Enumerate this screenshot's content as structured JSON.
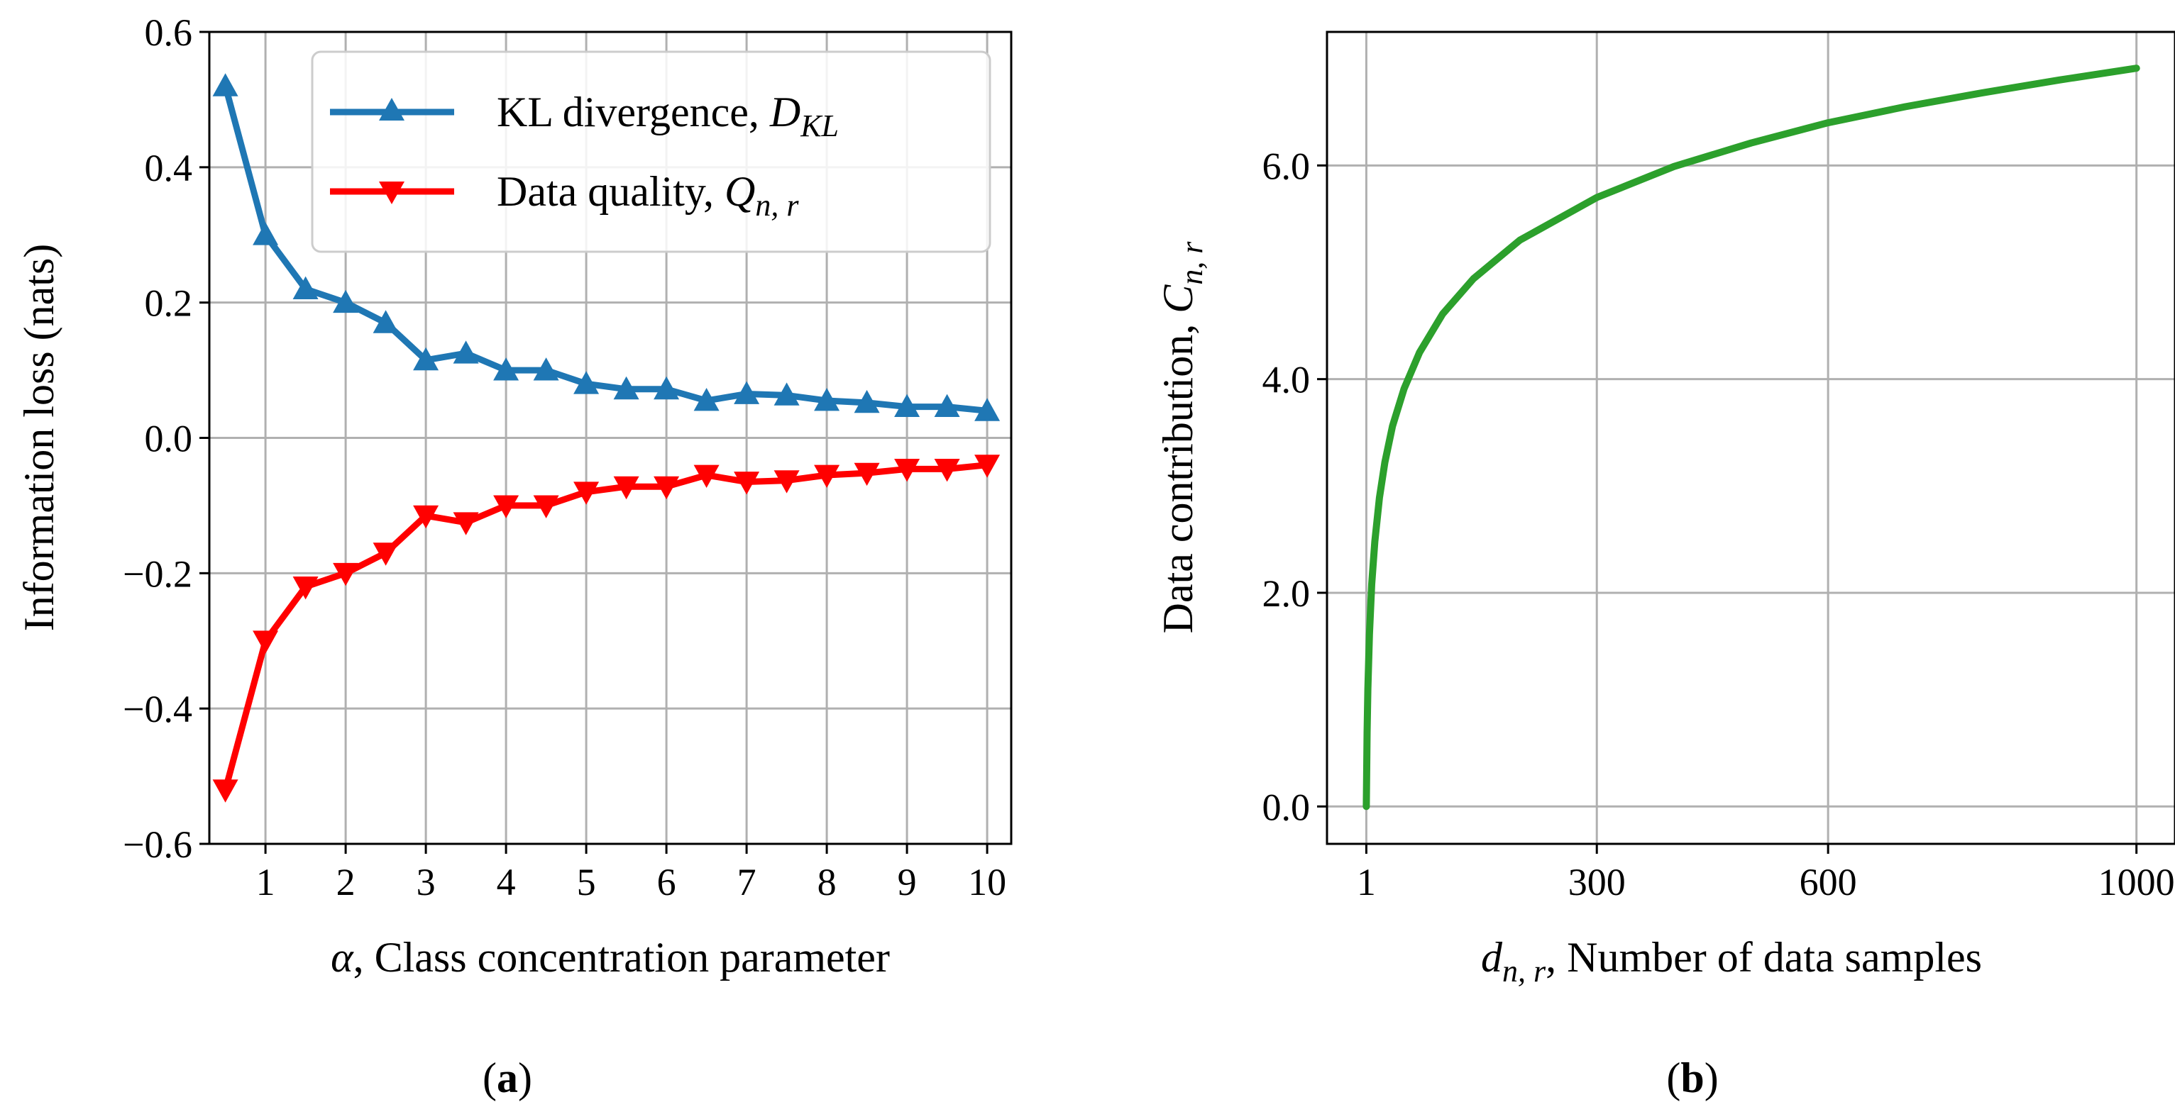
{
  "chart_data": [
    {
      "type": "line",
      "caption_letter": "a",
      "xlabel": ", Class concentration parameter",
      "xlabel_symbol": "α",
      "ylabel": "Information loss (nats)",
      "xlim": [
        0.3,
        10.3
      ],
      "ylim": [
        -0.6,
        0.6
      ],
      "xticks": [
        "1",
        "2",
        "3",
        "4",
        "5",
        "6",
        "7",
        "8",
        "9",
        "10"
      ],
      "yticks": [
        "0.6",
        "0.4",
        "0.2",
        "0.0",
        "−0.2",
        "−0.4",
        "−0.6"
      ],
      "grid": true,
      "legend_position": "top-right",
      "x": [
        0.5,
        1.0,
        1.5,
        2.0,
        2.5,
        3.0,
        3.5,
        4.0,
        4.5,
        5.0,
        5.5,
        6.0,
        6.5,
        7.0,
        7.5,
        8.0,
        8.5,
        9.0,
        9.5,
        10.0
      ],
      "series": [
        {
          "name": "KL divergence, ",
          "name_symbol": "D",
          "name_sub": "KL",
          "color": "#1f77b4",
          "marker": "triangle-up",
          "values": [
            0.52,
            0.3,
            0.22,
            0.2,
            0.17,
            0.115,
            0.125,
            0.1,
            0.1,
            0.08,
            0.072,
            0.072,
            0.055,
            0.065,
            0.063,
            0.055,
            0.052,
            0.046,
            0.046,
            0.04
          ]
        },
        {
          "name": "Data quality, ",
          "name_symbol": "Q",
          "name_sub": "n, r",
          "color": "#ff0000",
          "marker": "triangle-down",
          "values": [
            -0.52,
            -0.3,
            -0.22,
            -0.2,
            -0.17,
            -0.115,
            -0.125,
            -0.1,
            -0.1,
            -0.08,
            -0.072,
            -0.072,
            -0.055,
            -0.065,
            -0.063,
            -0.055,
            -0.052,
            -0.046,
            -0.046,
            -0.04
          ]
        }
      ]
    },
    {
      "type": "line",
      "caption_letter": "b",
      "xlabel": ", Number of data samples",
      "xlabel_symbol": "d",
      "xlabel_sub": "n, r",
      "ylabel": "Data contribution, ",
      "ylabel_symbol": "C",
      "ylabel_sub": "n, r",
      "xlim": [
        -50,
        1050
      ],
      "ylim": [
        -0.35,
        7.25
      ],
      "xticks": [
        "1",
        "300",
        "600",
        "1000"
      ],
      "yticks": [
        "0.0",
        "2.0",
        "4.0",
        "6.0"
      ],
      "grid": true,
      "series": [
        {
          "color": "#2ca02c",
          "function": "ln(d)",
          "x": [
            1,
            2,
            3,
            5,
            8,
            12,
            18,
            25,
            35,
            50,
            70,
            100,
            140,
            200,
            300,
            400,
            500,
            600,
            700,
            800,
            900,
            1000
          ],
          "values": [
            0.0,
            0.69,
            1.1,
            1.61,
            2.08,
            2.48,
            2.89,
            3.22,
            3.56,
            3.91,
            4.25,
            4.61,
            4.94,
            5.3,
            5.7,
            5.99,
            6.21,
            6.4,
            6.55,
            6.68,
            6.8,
            6.91
          ]
        }
      ]
    }
  ]
}
